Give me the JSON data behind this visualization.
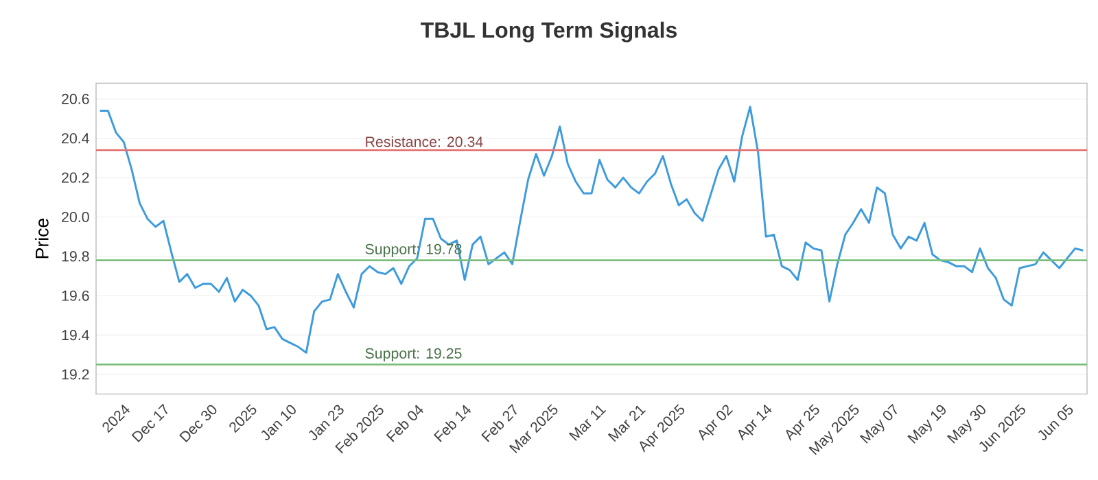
{
  "chart_data": {
    "type": "line",
    "title": "TBJL Long Term Signals",
    "ylabel": "Price",
    "categories": [
      null,
      null,
      null,
      "2024",
      null,
      null,
      null,
      null,
      "Dec 17",
      null,
      null,
      null,
      null,
      null,
      "Dec 30",
      null,
      null,
      null,
      null,
      "2025",
      null,
      null,
      null,
      null,
      "Jan 10",
      null,
      null,
      null,
      null,
      null,
      "Jan 23",
      null,
      null,
      null,
      null,
      "Feb 2025",
      null,
      null,
      null,
      null,
      "Feb 04",
      null,
      null,
      null,
      null,
      null,
      "Feb 14",
      null,
      null,
      null,
      null,
      null,
      "Feb 27",
      null,
      null,
      null,
      null,
      "Mar 2025",
      null,
      null,
      null,
      null,
      null,
      "Mar 11",
      null,
      null,
      null,
      null,
      "Mar 21",
      null,
      null,
      null,
      null,
      "Apr 2025",
      null,
      null,
      null,
      null,
      null,
      "Apr 02",
      null,
      null,
      null,
      null,
      "Apr 14",
      null,
      null,
      null,
      null,
      null,
      "Apr 25",
      null,
      null,
      null,
      null,
      "May 2025",
      null,
      null,
      null,
      null,
      "May 07",
      null,
      null,
      null,
      null,
      null,
      "May 19",
      null,
      null,
      null,
      null,
      "May 30",
      null,
      null,
      null,
      null,
      "Jun 2025",
      null,
      null,
      null,
      null,
      null,
      "Jun 05",
      null,
      null
    ],
    "series": [
      {
        "color": "#3d9bdc",
        "values": [
          20.54,
          20.54,
          20.43,
          20.38,
          20.24,
          20.07,
          19.99,
          19.95,
          19.98,
          19.82,
          19.67,
          19.71,
          19.64,
          19.66,
          19.66,
          19.62,
          19.69,
          19.57,
          19.63,
          19.6,
          19.55,
          19.43,
          19.44,
          19.38,
          19.36,
          19.34,
          19.31,
          19.52,
          19.57,
          19.58,
          19.71,
          19.62,
          19.54,
          19.71,
          19.75,
          19.72,
          19.71,
          19.74,
          19.66,
          19.75,
          19.79,
          19.99,
          19.99,
          19.89,
          19.86,
          19.88,
          19.68,
          19.86,
          19.9,
          19.76,
          19.79,
          19.82,
          19.76,
          19.98,
          20.19,
          20.32,
          20.21,
          20.31,
          20.46,
          20.27,
          20.18,
          20.12,
          20.12,
          20.29,
          20.19,
          20.15,
          20.2,
          20.15,
          20.12,
          20.18,
          20.22,
          20.31,
          20.17,
          20.06,
          20.09,
          20.02,
          19.98,
          20.11,
          20.24,
          20.31,
          20.18,
          20.41,
          20.56,
          20.33,
          19.9,
          19.91,
          19.75,
          19.73,
          19.68,
          19.87,
          19.84,
          19.83,
          19.57,
          19.76,
          19.91,
          19.97,
          20.04,
          19.97,
          20.15,
          20.12,
          19.91,
          19.84,
          19.9,
          19.88,
          19.97,
          19.81,
          19.78,
          19.77,
          19.75,
          19.75,
          19.72,
          19.84,
          19.74,
          19.69,
          19.58,
          19.55,
          19.74,
          19.75,
          19.76,
          19.82,
          19.78,
          19.74,
          19.79,
          19.84,
          19.83
        ]
      }
    ],
    "ylim": [
      19.1,
      20.68
    ],
    "yticks": [
      19.2,
      19.4,
      19.6,
      19.8,
      {
        "value": 20.0,
        "label": "20.0"
      },
      20.2,
      20.4,
      20.6
    ],
    "grid": "y",
    "ref_lines": [
      {
        "axis": "y",
        "value": 20.34,
        "label": "Resistance: 20.34",
        "color": "#e57373"
      },
      {
        "axis": "y",
        "value": 19.78,
        "label": "Support: 19.78",
        "color": "#7cbf7c"
      },
      {
        "axis": "y",
        "value": 19.25,
        "label": "Support: 19.25",
        "color": "#7cbf7c"
      }
    ]
  }
}
